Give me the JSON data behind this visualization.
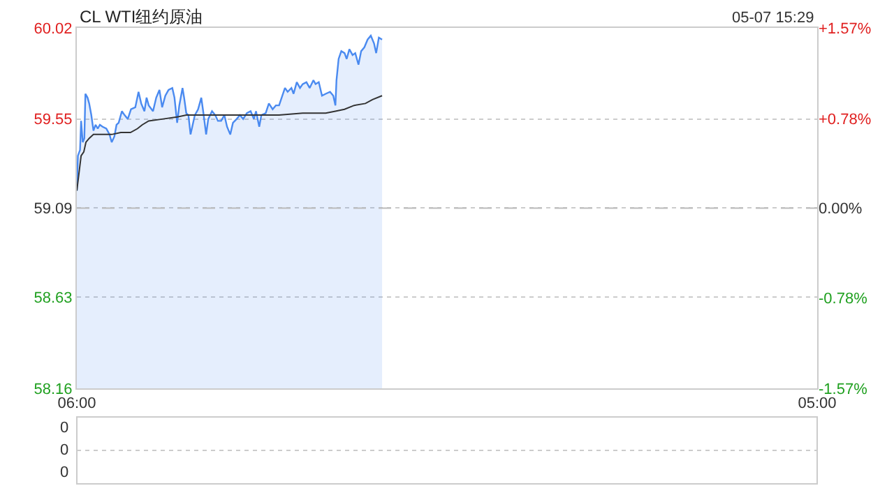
{
  "chart_data": [
    {
      "type": "line",
      "title": "CL WTI纽约原油",
      "annotations": [
        "05-07 15:29"
      ],
      "xlim": [
        "--05-07T06:00",
        "--05-08T05:00"
      ],
      "xticks": [
        {
          "value": "--05-07T06:00",
          "label": "06:00"
        },
        {
          "value": "--05-08T05:00",
          "label": "05:00"
        }
      ],
      "ylim": [
        58.16,
        60.02
      ],
      "yticks": [
        58.16,
        58.63,
        59.09,
        59.55,
        60.02
      ],
      "y2lim": [
        -1.57,
        1.57
      ],
      "y2ticks": [
        {
          "value": -1.57,
          "label": "-1.57%"
        },
        {
          "value": -0.78,
          "label": "-0.78%"
        },
        {
          "value": 0,
          "label": "0.00%"
        },
        {
          "value": 0.78,
          "label": "+0.78%"
        },
        {
          "value": 1.57,
          "label": "+1.57%"
        }
      ],
      "grid": "y",
      "marker": "none",
      "ref_lines": [
        {
          "axis": "y",
          "value": 59.09,
          "line_style": "dashed",
          "color": "#bbbbbb"
        }
      ],
      "series": [
        {
          "type": "area",
          "color": "#4a8af0",
          "x": [
            "--05-07T06:00",
            "--05-07T06:02",
            "--05-07T06:06",
            "--05-07T06:08",
            "--05-07T06:11",
            "--05-07T06:14",
            "--05-07T06:16",
            "--05-07T06:20",
            "--05-07T06:23",
            "--05-07T06:27",
            "--05-07T06:31",
            "--05-07T06:35",
            "--05-07T06:39",
            "--05-07T06:43",
            "--05-07T06:48",
            "--05-07T06:55",
            "--05-07T07:01",
            "--05-07T07:05",
            "--05-07T07:10",
            "--05-07T07:14",
            "--05-07T07:18",
            "--05-07T07:24",
            "--05-07T07:29",
            "--05-07T07:35",
            "--05-07T07:41",
            "--05-07T07:49",
            "--05-07T07:55",
            "--05-07T08:00",
            "--05-07T08:06",
            "--05-07T08:10",
            "--05-07T08:14",
            "--05-07T08:22",
            "--05-07T08:28",
            "--05-07T08:34",
            "--05-07T08:39",
            "--05-07T08:45",
            "--05-07T08:51",
            "--05-07T08:58",
            "--05-07T09:02",
            "--05-07T09:07",
            "--05-07T09:11",
            "--05-07T09:17",
            "--05-07T09:20",
            "--05-07T09:24",
            "--05-07T09:28",
            "--05-07T09:32",
            "--05-07T09:40",
            "--05-07T09:46",
            "--05-07T09:52",
            "--05-07T09:56",
            "--05-07T10:01",
            "--05-07T10:05",
            "--05-07T10:12",
            "--05-07T10:18",
            "--05-07T10:23",
            "--05-07T10:29",
            "--05-07T10:35",
            "--05-07T10:40",
            "--05-07T10:46",
            "--05-07T10:51",
            "--05-07T10:58",
            "--05-07T11:04",
            "--05-07T11:10",
            "--05-07T11:17",
            "--05-07T11:24",
            "--05-07T11:30",
            "--05-07T11:34",
            "--05-07T11:40",
            "--05-07T11:44",
            "--05-07T11:52",
            "--05-07T11:58",
            "--05-07T12:05",
            "--05-07T12:11",
            "--05-07T12:17",
            "--05-07T12:23",
            "--05-07T12:28",
            "--05-07T12:33",
            "--05-07T12:40",
            "--05-07T12:44",
            "--05-07T12:50",
            "--05-07T12:56",
            "--05-07T13:01",
            "--05-07T13:08",
            "--05-07T13:14",
            "--05-07T13:21",
            "--05-07T13:25",
            "--05-07T13:31",
            "--05-07T13:37",
            "--05-07T13:44",
            "--05-07T13:52",
            "--05-07T13:58",
            "--05-07T14:02",
            "--05-07T14:04",
            "--05-07T14:08",
            "--05-07T14:13",
            "--05-07T14:19",
            "--05-07T14:23",
            "--05-07T14:28",
            "--05-07T14:34",
            "--05-07T14:39",
            "--05-07T14:45",
            "--05-07T14:50",
            "--05-07T14:56",
            "--05-07T15:02",
            "--05-07T15:08",
            "--05-07T15:14",
            "--05-07T15:18",
            "--05-07T15:23",
            "--05-07T15:29"
          ],
          "values": [
            59.18,
            59.36,
            59.39,
            59.54,
            59.43,
            59.45,
            59.68,
            59.66,
            59.63,
            59.57,
            59.49,
            59.52,
            59.5,
            59.52,
            59.51,
            59.5,
            59.47,
            59.43,
            59.46,
            59.52,
            59.53,
            59.59,
            59.57,
            59.55,
            59.6,
            59.61,
            59.69,
            59.63,
            59.59,
            59.66,
            59.62,
            59.59,
            59.66,
            59.7,
            59.61,
            59.67,
            59.7,
            59.71,
            59.66,
            59.53,
            59.62,
            59.71,
            59.66,
            59.58,
            59.57,
            59.47,
            59.57,
            59.6,
            59.66,
            59.58,
            59.47,
            59.55,
            59.59,
            59.57,
            59.54,
            59.54,
            59.57,
            59.51,
            59.47,
            59.53,
            59.55,
            59.57,
            59.55,
            59.58,
            59.59,
            59.55,
            59.59,
            59.51,
            59.57,
            59.58,
            59.63,
            59.6,
            59.62,
            59.62,
            59.67,
            59.71,
            59.69,
            59.71,
            59.68,
            59.74,
            59.71,
            59.73,
            59.74,
            59.71,
            59.75,
            59.73,
            59.74,
            59.67,
            59.68,
            59.69,
            59.67,
            59.62,
            59.75,
            59.86,
            59.9,
            59.89,
            59.86,
            59.91,
            59.88,
            59.89,
            59.83,
            59.9,
            59.92,
            59.96,
            59.98,
            59.94,
            59.89,
            59.97,
            59.96
          ]
        },
        {
          "type": "line",
          "color": "#333333",
          "x": [
            "--05-07T06:00",
            "--05-07T06:04",
            "--05-07T06:08",
            "--05-07T06:13",
            "--05-07T06:17",
            "--05-07T06:23",
            "--05-07T06:31",
            "--05-07T06:43",
            "--05-07T07:05",
            "--05-07T07:22",
            "--05-07T07:40",
            "--05-07T07:53",
            "--05-07T08:02",
            "--05-07T08:14",
            "--05-07T08:41",
            "--05-07T09:07",
            "--05-07T09:24",
            "--05-07T09:59",
            "--05-07T10:51",
            "--05-07T11:43",
            "--05-07T12:17",
            "--05-07T13:01",
            "--05-07T13:44",
            "--05-07T14:02",
            "--05-07T14:19",
            "--05-07T14:37",
            "--05-07T14:58",
            "--05-07T15:11",
            "--05-07T15:29"
          ],
          "values": [
            59.18,
            59.27,
            59.36,
            59.38,
            59.43,
            59.45,
            59.47,
            59.47,
            59.47,
            59.48,
            59.48,
            59.5,
            59.52,
            59.54,
            59.55,
            59.56,
            59.57,
            59.57,
            59.57,
            59.57,
            59.57,
            59.58,
            59.58,
            59.59,
            59.6,
            59.62,
            59.63,
            59.65,
            59.67
          ]
        }
      ]
    },
    {
      "type": "other",
      "annotations": [
        "0",
        "0",
        "0"
      ]
    }
  ]
}
